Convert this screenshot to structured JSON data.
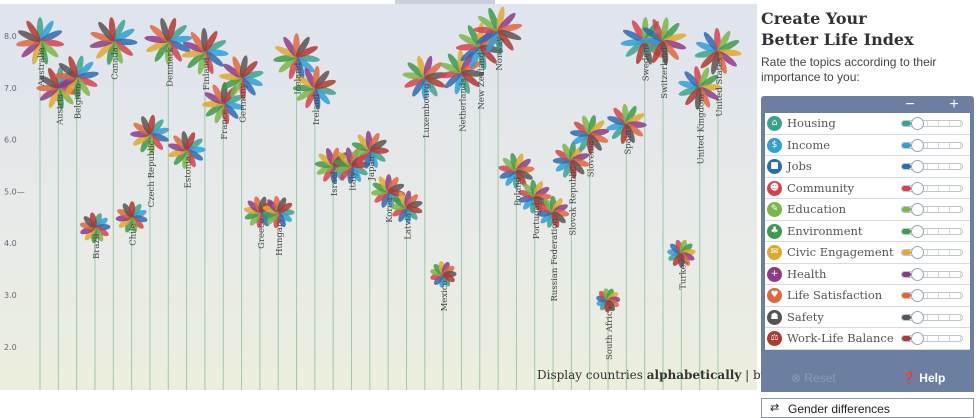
{
  "panel": {
    "title_line1": "Create Your",
    "title_line2": "Better Life Index",
    "subtitle": "Rate the topics according to their importance to you:",
    "minus_label": "−",
    "plus_label": "+",
    "reset_label": "Reset",
    "help_label": "Help",
    "gender_label": "Gender differences"
  },
  "topics": [
    {
      "label": "Housing",
      "color": "#3aa38f",
      "icon": "house-icon",
      "glyph": "⌂",
      "value": 0.15
    },
    {
      "label": "Income",
      "color": "#2f9fd8",
      "icon": "money-icon",
      "glyph": "$",
      "value": 0.15
    },
    {
      "label": "Jobs",
      "color": "#2b6cb0",
      "icon": "briefcase-icon",
      "glyph": "■",
      "value": 0.15
    },
    {
      "label": "Community",
      "color": "#d9414a",
      "icon": "people-icon",
      "glyph": "☻",
      "value": 0.15
    },
    {
      "label": "Education",
      "color": "#7ab648",
      "icon": "book-icon",
      "glyph": "✎",
      "value": 0.15
    },
    {
      "label": "Environment",
      "color": "#3c9a4a",
      "icon": "tree-icon",
      "glyph": "♣",
      "value": 0.15
    },
    {
      "label": "Civic Engagement",
      "color": "#e0a92a",
      "icon": "envelope-icon",
      "glyph": "✉",
      "value": 0.15
    },
    {
      "label": "Health",
      "color": "#8e3a8a",
      "icon": "health-cross-icon",
      "glyph": "+",
      "value": 0.15
    },
    {
      "label": "Life Satisfaction",
      "color": "#e0673a",
      "icon": "heart-icon",
      "glyph": "♥",
      "value": 0.15
    },
    {
      "label": "Safety",
      "color": "#555555",
      "icon": "running-person-icon",
      "glyph": "☗",
      "value": 0.15
    },
    {
      "label": "Work-Life Balance",
      "color": "#b5362f",
      "icon": "scales-icon",
      "glyph": "⚖",
      "value": 0.15
    }
  ],
  "sort": {
    "prefix": "Display countries ",
    "alphabetically": "alphabetically",
    "separator": " | ",
    "by_rank": "by rank"
  },
  "chart_data": {
    "type": "scatter",
    "ylim": [
      1.4,
      8.4
    ],
    "yticks": [
      "8.0",
      "7.0",
      "6.0",
      "5.0—",
      "4.0",
      "3.0",
      "2.0"
    ],
    "ytick_values": [
      8,
      7,
      6,
      5,
      4,
      3,
      2
    ],
    "petal_colors": [
      "#3aa38f",
      "#2f9fd8",
      "#2b6cb0",
      "#d9414a",
      "#7ab648",
      "#3c9a4a",
      "#e0a92a",
      "#8e3a8a",
      "#e0673a",
      "#555555",
      "#b5362f"
    ],
    "countries": [
      {
        "name": "Australia",
        "y": 7.9
      },
      {
        "name": "Austria",
        "y": 7.0
      },
      {
        "name": "Belgium",
        "y": 7.2
      },
      {
        "name": "Brazil",
        "y": 4.3
      },
      {
        "name": "Canada",
        "y": 7.9
      },
      {
        "name": "Chile",
        "y": 4.5
      },
      {
        "name": "Czech Republic",
        "y": 6.1
      },
      {
        "name": "Denmark",
        "y": 7.9
      },
      {
        "name": "Estonia",
        "y": 5.8
      },
      {
        "name": "Finland",
        "y": 7.7
      },
      {
        "name": "France",
        "y": 6.7
      },
      {
        "name": "Germany",
        "y": 7.2
      },
      {
        "name": "Greece",
        "y": 4.6
      },
      {
        "name": "Hungary",
        "y": 4.6
      },
      {
        "name": "Iceland",
        "y": 7.6
      },
      {
        "name": "Ireland",
        "y": 7.0
      },
      {
        "name": "Israel",
        "y": 5.5
      },
      {
        "name": "Italy",
        "y": 5.5
      },
      {
        "name": "Japan",
        "y": 5.8
      },
      {
        "name": "Korea",
        "y": 5.0
      },
      {
        "name": "Latvia",
        "y": 4.7
      },
      {
        "name": "Luxembourg",
        "y": 7.2
      },
      {
        "name": "Mexico",
        "y": 3.4
      },
      {
        "name": "Netherlands",
        "y": 7.3
      },
      {
        "name": "New Zealand",
        "y": 7.8
      },
      {
        "name": "Norway",
        "y": 8.1
      },
      {
        "name": "Poland",
        "y": 5.4
      },
      {
        "name": "Portugal",
        "y": 4.9
      },
      {
        "name": "Russian Federation",
        "y": 4.6
      },
      {
        "name": "Slovak Republic",
        "y": 5.6
      },
      {
        "name": "Slovenia",
        "y": 6.1
      },
      {
        "name": "South Africa",
        "y": 2.9
      },
      {
        "name": "Spain",
        "y": 6.3
      },
      {
        "name": "Sweden",
        "y": 7.9
      },
      {
        "name": "Switzerland",
        "y": 7.9
      },
      {
        "name": "Turkey",
        "y": 3.8
      },
      {
        "name": "United Kingdom",
        "y": 7.0
      },
      {
        "name": "United States",
        "y": 7.7
      }
    ]
  }
}
